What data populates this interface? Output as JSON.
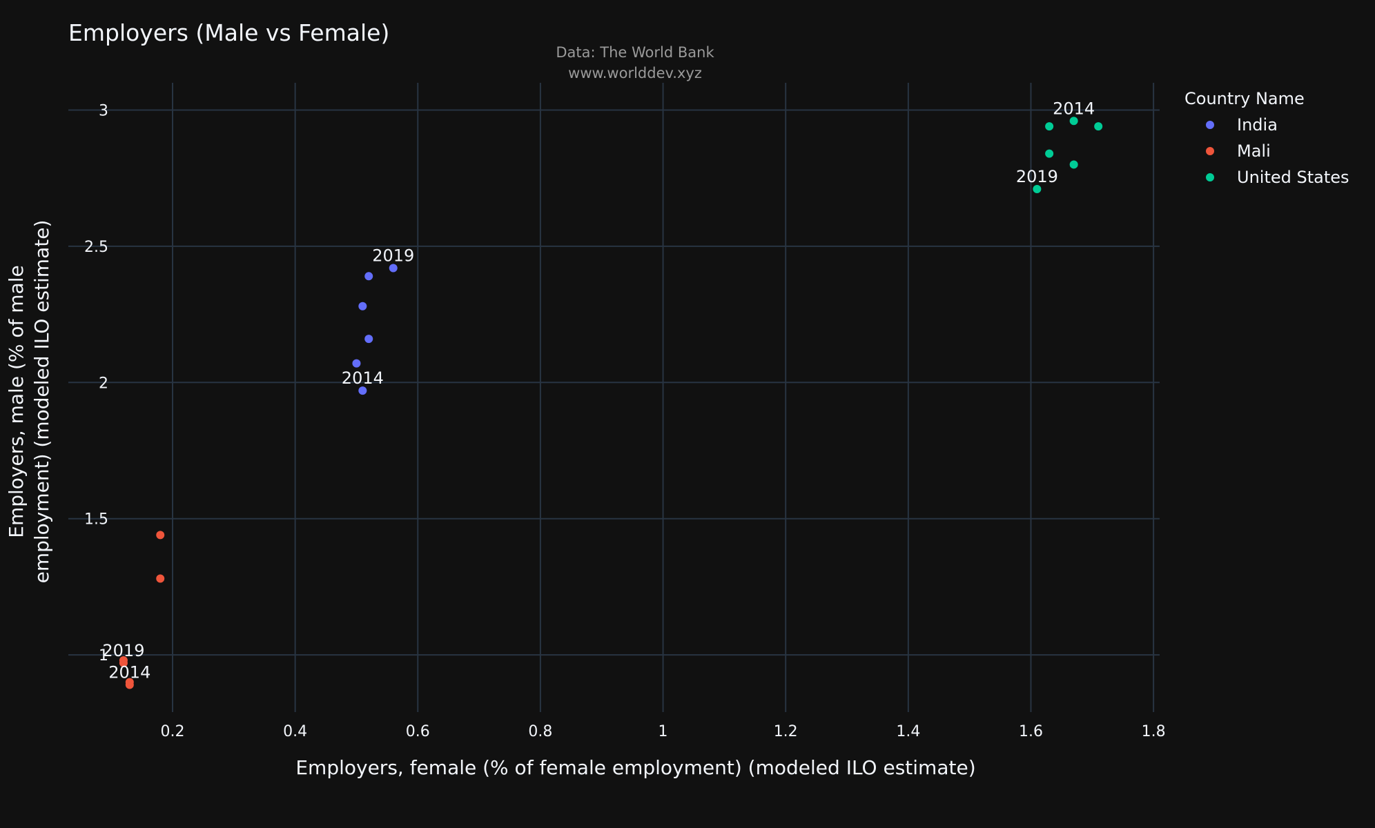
{
  "chart_data": {
    "type": "scatter",
    "title": "Employers (Male vs Female)",
    "subtitle_lines": [
      "Data: The World Bank",
      "www.worlddev.xyz"
    ],
    "xlabel": "Employers, female (% of female employment) (modeled ILO estimate)",
    "ylabel_lines": [
      "Employers, male (% of male",
      "employment) (modeled ILO estimate)"
    ],
    "xlim": [
      0.03,
      1.81
    ],
    "ylim": [
      0.79,
      3.1
    ],
    "xticks": [
      0.2,
      0.4,
      0.6,
      0.8,
      1,
      1.2,
      1.4,
      1.6,
      1.8
    ],
    "xtick_labels": [
      "0.2",
      "0.4",
      "0.6",
      "0.8",
      "1",
      "1.2",
      "1.4",
      "1.6",
      "1.8"
    ],
    "yticks": [
      1,
      1.5,
      2,
      2.5,
      3
    ],
    "ytick_labels": [
      "1",
      "1.5",
      "2",
      "2.5",
      "3"
    ],
    "grid": true,
    "legend": {
      "title": "Country Name",
      "placement": "top-right"
    },
    "series": [
      {
        "name": "India",
        "color": "#636efa",
        "points": [
          {
            "x": 0.51,
            "y": 1.97,
            "label": "2014"
          },
          {
            "x": 0.5,
            "y": 2.07,
            "label": ""
          },
          {
            "x": 0.52,
            "y": 2.16,
            "label": ""
          },
          {
            "x": 0.51,
            "y": 2.28,
            "label": ""
          },
          {
            "x": 0.52,
            "y": 2.39,
            "label": ""
          },
          {
            "x": 0.56,
            "y": 2.42,
            "label": "2019"
          }
        ]
      },
      {
        "name": "Mali",
        "color": "#ef553b",
        "points": [
          {
            "x": 0.13,
            "y": 0.89,
            "label": "2014"
          },
          {
            "x": 0.13,
            "y": 0.9,
            "label": ""
          },
          {
            "x": 0.18,
            "y": 1.44,
            "label": ""
          },
          {
            "x": 0.18,
            "y": 1.28,
            "label": ""
          },
          {
            "x": 0.12,
            "y": 0.98,
            "label": ""
          },
          {
            "x": 0.12,
            "y": 0.97,
            "label": "2019"
          }
        ]
      },
      {
        "name": "United States",
        "color": "#00cc96",
        "points": [
          {
            "x": 1.67,
            "y": 2.96,
            "label": "2014"
          },
          {
            "x": 1.71,
            "y": 2.94,
            "label": ""
          },
          {
            "x": 1.63,
            "y": 2.94,
            "label": ""
          },
          {
            "x": 1.67,
            "y": 2.8,
            "label": ""
          },
          {
            "x": 1.63,
            "y": 2.84,
            "label": ""
          },
          {
            "x": 1.61,
            "y": 2.71,
            "label": "2019"
          }
        ]
      }
    ]
  }
}
